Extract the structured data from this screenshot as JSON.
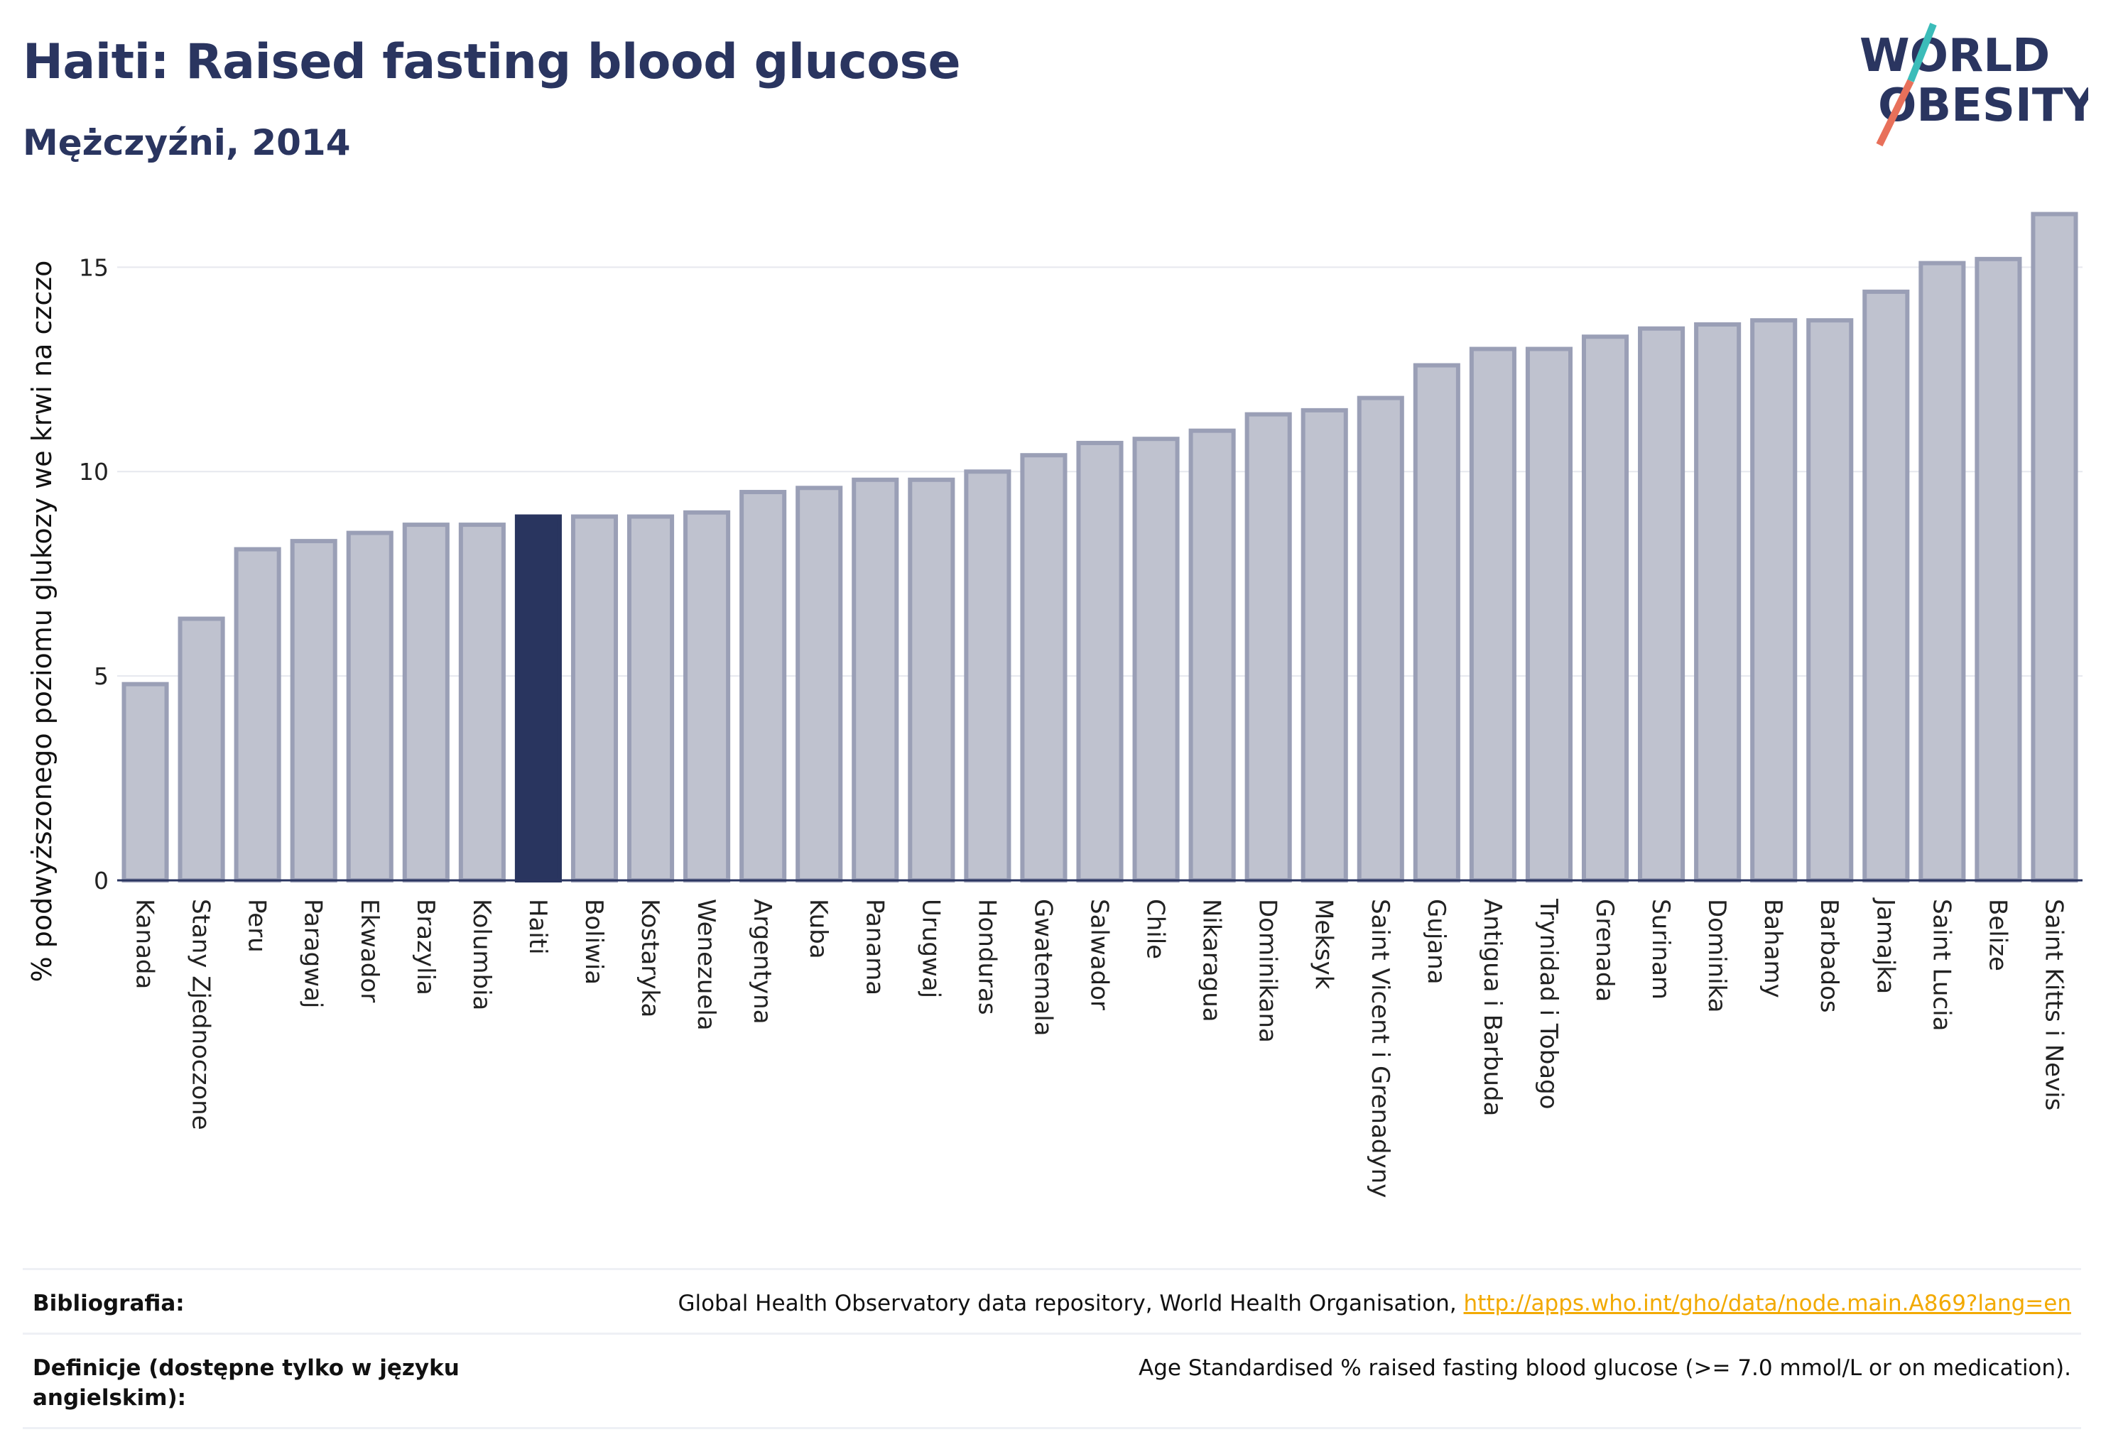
{
  "header": {
    "title": "Haiti: Raised fasting blood glucose",
    "subtitle": "Mężczyźni, 2014"
  },
  "logo": {
    "line1": "WORLD",
    "line2": "OBESITY"
  },
  "colors": {
    "highlight": "#29355f",
    "bar_fill": "#bfc2cf",
    "bar_stroke": "#9a9fb6",
    "axis": "#2a3560",
    "grid": "#e6e8ee"
  },
  "chart_data": {
    "type": "bar",
    "title": "Haiti: Raised fasting blood glucose",
    "subtitle": "Mężczyźni, 2014",
    "xlabel": "",
    "ylabel": "% podwyższonego poziomu glukozy we krwi na czczo",
    "ylim": [
      0,
      16.5
    ],
    "yticks": [
      0,
      5,
      10,
      15
    ],
    "highlight": "Haiti",
    "categories": [
      "Kanada",
      "Stany Zjednoczone",
      "Peru",
      "Paragwaj",
      "Ekwador",
      "Brazylia",
      "Kolumbia",
      "Haiti",
      "Boliwia",
      "Kostaryka",
      "Wenezuela",
      "Argentyna",
      "Kuba",
      "Panama",
      "Urugwaj",
      "Honduras",
      "Gwatemala",
      "Salwador",
      "Chile",
      "Nikaragua",
      "Dominikana",
      "Meksyk",
      "Saint Vicent i Grenadyny",
      "Gujana",
      "Antigua i Barbuda",
      "Trynidad i Tobago",
      "Grenada",
      "Surinam",
      "Dominika",
      "Bahamy",
      "Barbados",
      "Jamajka",
      "Saint Lucia",
      "Belize",
      "Saint Kitts i Nevis"
    ],
    "values": [
      4.8,
      6.4,
      8.1,
      8.3,
      8.5,
      8.7,
      8.7,
      8.9,
      8.9,
      8.9,
      9.0,
      9.5,
      9.6,
      9.8,
      9.8,
      10.0,
      10.4,
      10.7,
      10.8,
      11.0,
      11.4,
      11.5,
      11.8,
      12.6,
      13.0,
      13.0,
      13.3,
      13.5,
      13.6,
      13.7,
      13.7,
      14.4,
      15.1,
      15.2,
      16.3
    ],
    "grid": true,
    "legend": "none"
  },
  "footer": {
    "bibliography_label": "Bibliografia:",
    "bibliography_text": "Global Health Observatory data repository, World Health Organisation, ",
    "bibliography_link": "http://apps.who.int/gho/data/node.main.A869?lang=en",
    "definitions_label": "Definicje (dostępne tylko w języku angielskim):",
    "definitions_text": "Age Standardised % raised fasting blood glucose (>= 7.0 mmol/L or on medication)."
  }
}
